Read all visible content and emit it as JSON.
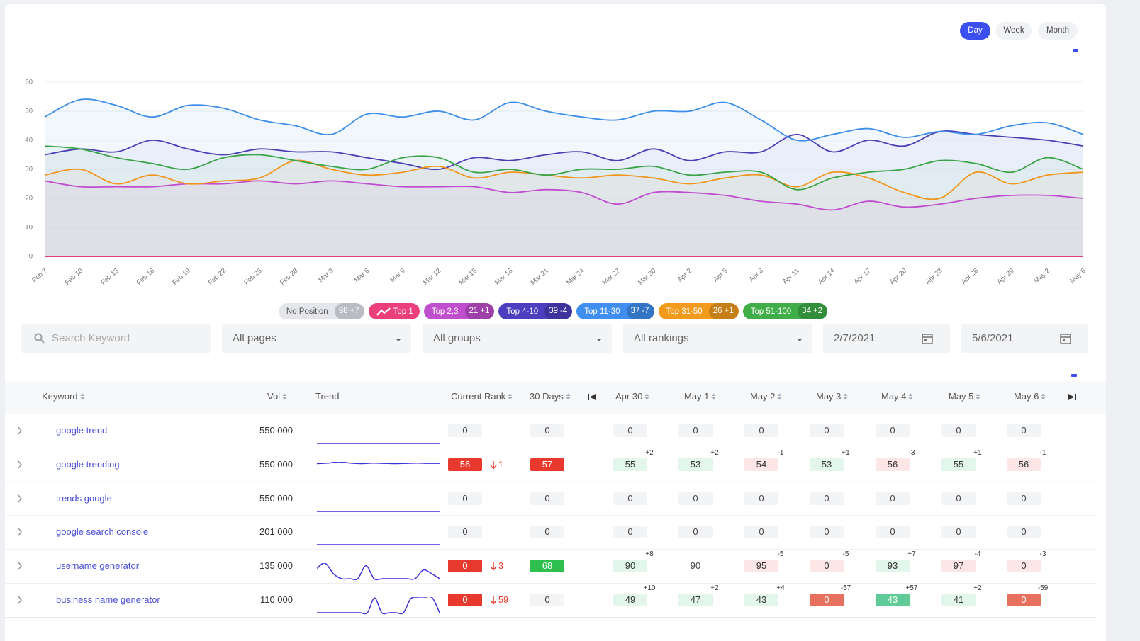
{
  "period_toggle": {
    "options": [
      "Day",
      "Week",
      "Month"
    ],
    "active": 0
  },
  "chart_data": {
    "type": "line",
    "categories": [
      "Feb 7",
      "Feb 10",
      "Feb 13",
      "Feb 16",
      "Feb 19",
      "Feb 22",
      "Feb 25",
      "Feb 28",
      "Mar 3",
      "Mar 6",
      "Mar 9",
      "Mar 12",
      "Mar 15",
      "Mar 18",
      "Mar 21",
      "Mar 24",
      "Mar 27",
      "Mar 30",
      "Apr 2",
      "Apr 5",
      "Apr 8",
      "Apr 11",
      "Apr 14",
      "Apr 17",
      "Apr 20",
      "Apr 23",
      "Apr 26",
      "Apr 29",
      "May 2",
      "May 6"
    ],
    "series": [
      {
        "name": "Top 1",
        "color": "#e0245e",
        "chip": "#ea3f7b",
        "values": [
          0,
          0,
          0,
          0,
          0,
          0,
          0,
          0,
          0,
          0,
          0,
          0,
          0,
          0,
          0,
          0,
          0,
          0,
          0,
          0,
          0,
          0,
          0,
          0,
          0,
          0,
          0,
          0,
          0,
          0
        ]
      },
      {
        "name": "Top 2,3",
        "color": "#c04ccf",
        "chip": "#c04fce",
        "count": 21,
        "change": "+1",
        "values": [
          26,
          24,
          24,
          24,
          25,
          25,
          26,
          25,
          26,
          25,
          24,
          24,
          24,
          22,
          23,
          22,
          18,
          22,
          22,
          21,
          19,
          18,
          16,
          19,
          17,
          18,
          20,
          21,
          21,
          20
        ]
      },
      {
        "name": "Top 4-10",
        "color": "#4b3fb5",
        "chip": "#4b3fc0",
        "count": 39,
        "change": "-4",
        "values": [
          35,
          37,
          36,
          40,
          37,
          35,
          37,
          36,
          36,
          34,
          32,
          30,
          34,
          33,
          35,
          36,
          33,
          37,
          33,
          36,
          36,
          42,
          36,
          40,
          38,
          43,
          42,
          41,
          40,
          38
        ]
      },
      {
        "name": "Top 11-30",
        "color": "#3d8ee8",
        "chip": "#3f8ef0",
        "count": 37,
        "change": "-7",
        "values": [
          48,
          54,
          52,
          48,
          52,
          51,
          47,
          45,
          42,
          49,
          48,
          50,
          47,
          53,
          50,
          48,
          47,
          50,
          50,
          53,
          47,
          40,
          42,
          44,
          41,
          43,
          42,
          45,
          46,
          42
        ]
      },
      {
        "name": "Top 31-50",
        "color": "#f0961d",
        "chip": "#f29a1c",
        "count": 26,
        "change": "+1",
        "values": [
          28,
          30,
          25,
          28,
          25,
          26,
          27,
          33,
          30,
          28,
          29,
          31,
          27,
          29,
          28,
          27,
          28,
          27,
          25,
          27,
          28,
          24,
          29,
          27,
          22,
          20,
          29,
          25,
          28,
          29
        ]
      },
      {
        "name": "Top 51-100",
        "color": "#3aa346",
        "chip": "#3fae49",
        "count": 34,
        "change": "+2",
        "values": [
          38,
          37,
          34,
          32,
          30,
          34,
          35,
          33,
          31,
          30,
          34,
          34,
          29,
          30,
          28,
          30,
          30,
          31,
          28,
          29,
          29,
          23,
          27,
          29,
          30,
          33,
          32,
          29,
          34,
          30
        ]
      }
    ],
    "ylim": [
      0,
      60
    ],
    "yticks": [
      0,
      10,
      20,
      30,
      40,
      50,
      60
    ],
    "grid": true
  },
  "no_position": {
    "name": "No Position",
    "count": 98,
    "change": "+7"
  },
  "filters": {
    "search_placeholder": "Search Keyword",
    "selects": [
      "All pages",
      "All groups",
      "All rankings"
    ],
    "dates": [
      "2/7/2021",
      "5/6/2021"
    ]
  },
  "table": {
    "columns": [
      "Keyword",
      "Vol",
      "Trend",
      "Current Rank",
      "30 Days",
      "Apr 30",
      "May 1",
      "May 2",
      "May 3",
      "May 4",
      "May 5",
      "May 6"
    ],
    "rows": [
      {
        "keyword": "google trend",
        "vol": "550 000",
        "trend": [
          0,
          0,
          0,
          0,
          0,
          0,
          0,
          0,
          0,
          0,
          0,
          0
        ],
        "rank": {
          "value": 0,
          "state": "plain"
        },
        "days30": {
          "value": 0,
          "state": "plain"
        },
        "days": [
          {
            "value": 0,
            "state": "plain"
          },
          {
            "value": 0,
            "state": "plain"
          },
          {
            "value": 0,
            "state": "plain"
          },
          {
            "value": 0,
            "state": "plain"
          },
          {
            "value": 0,
            "state": "plain"
          },
          {
            "value": 0,
            "state": "plain"
          },
          {
            "value": 0,
            "state": "plain"
          }
        ]
      },
      {
        "keyword": "google trending",
        "vol": "550 000",
        "trend": [
          55,
          57,
          62,
          57,
          55,
          57,
          56,
          55,
          56,
          57,
          56,
          56
        ],
        "rank": {
          "value": 56,
          "state": "bad",
          "change": 1
        },
        "days30": {
          "value": 57,
          "state": "bad"
        },
        "days": [
          {
            "value": 55,
            "state": "up",
            "delta": "+2"
          },
          {
            "value": 53,
            "state": "up",
            "delta": "+2"
          },
          {
            "value": 54,
            "state": "down",
            "delta": "-1"
          },
          {
            "value": 53,
            "state": "up",
            "delta": "+1"
          },
          {
            "value": 56,
            "state": "down",
            "delta": "-3"
          },
          {
            "value": 55,
            "state": "up",
            "delta": "+1"
          },
          {
            "value": 56,
            "state": "down",
            "delta": "-1"
          }
        ]
      },
      {
        "keyword": "trends google",
        "vol": "550 000",
        "trend": [
          0,
          0,
          0,
          0,
          0,
          0,
          0,
          0,
          0,
          0,
          0,
          0
        ],
        "rank": {
          "value": 0,
          "state": "plain"
        },
        "days30": {
          "value": 0,
          "state": "plain"
        },
        "days": [
          {
            "value": 0,
            "state": "plain"
          },
          {
            "value": 0,
            "state": "plain"
          },
          {
            "value": 0,
            "state": "plain"
          },
          {
            "value": 0,
            "state": "plain"
          },
          {
            "value": 0,
            "state": "plain"
          },
          {
            "value": 0,
            "state": "plain"
          },
          {
            "value": 0,
            "state": "plain"
          }
        ]
      },
      {
        "keyword": "google search console",
        "vol": "201 000",
        "trend": [
          0,
          0,
          0,
          0,
          0,
          0,
          0,
          0,
          0,
          0,
          0,
          0
        ],
        "rank": {
          "value": 0,
          "state": "plain"
        },
        "days30": {
          "value": 0,
          "state": "plain"
        },
        "days": [
          {
            "value": 0,
            "state": "plain"
          },
          {
            "value": 0,
            "state": "plain"
          },
          {
            "value": 0,
            "state": "plain"
          },
          {
            "value": 0,
            "state": "plain"
          },
          {
            "value": 0,
            "state": "plain"
          },
          {
            "value": 0,
            "state": "plain"
          },
          {
            "value": 0,
            "state": "plain"
          }
        ]
      },
      {
        "keyword": "username generator",
        "vol": "135 000",
        "trend": [
          60,
          90,
          30,
          0,
          0,
          0,
          75,
          0,
          0,
          0,
          0,
          0,
          0,
          50,
          30,
          0
        ],
        "rank": {
          "value": 0,
          "state": "bad",
          "change": 3
        },
        "days30": {
          "value": 68,
          "state": "good"
        },
        "days": [
          {
            "value": 90,
            "state": "up",
            "delta": "+8"
          },
          {
            "value": 90,
            "state": "blank"
          },
          {
            "value": 95,
            "state": "down",
            "delta": "-5"
          },
          {
            "value": 0,
            "state": "down",
            "delta": "-5"
          },
          {
            "value": 93,
            "state": "up",
            "delta": "+7"
          },
          {
            "value": 97,
            "state": "down",
            "delta": "-4"
          },
          {
            "value": 0,
            "state": "down",
            "delta": "-3"
          }
        ]
      },
      {
        "keyword": "business name generator",
        "vol": "110 000",
        "trend": [
          0,
          0,
          0,
          0,
          0,
          0,
          0,
          0,
          90,
          0,
          0,
          0,
          0,
          85,
          95,
          95,
          90,
          0
        ],
        "rank": {
          "value": 0,
          "state": "bad",
          "change": 59
        },
        "days30": {
          "value": 0,
          "state": "plain"
        },
        "days": [
          {
            "value": 49,
            "state": "up",
            "delta": "+10"
          },
          {
            "value": 47,
            "state": "up",
            "delta": "+2"
          },
          {
            "value": 43,
            "state": "up",
            "delta": "+4"
          },
          {
            "value": 0,
            "state": "down-strong",
            "delta": "-57"
          },
          {
            "value": 43,
            "state": "up-strong",
            "delta": "+57"
          },
          {
            "value": 41,
            "state": "up",
            "delta": "+2"
          },
          {
            "value": 0,
            "state": "down-strong",
            "delta": "-59"
          }
        ]
      }
    ]
  }
}
